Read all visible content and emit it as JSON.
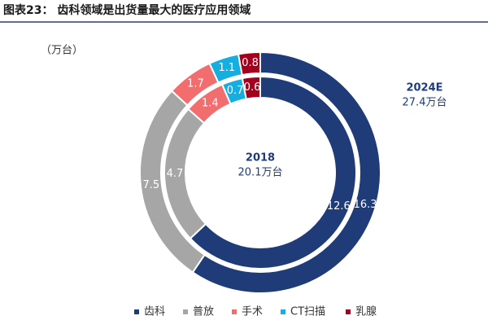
{
  "chart_data": {
    "type": "donut",
    "title": "图表23：  齿科领域是出货量最大的医疗应用领域",
    "unit": "（万台）",
    "categories": [
      "齿科",
      "普放",
      "手术",
      "CT扫描",
      "乳腺"
    ],
    "colors": [
      "#1f3b78",
      "#a6a6a6",
      "#f26d6d",
      "#16aee0",
      "#a3001e"
    ],
    "series": [
      {
        "name": "2018",
        "total_label": "20.1万台",
        "values": [
          12.6,
          4.7,
          1.4,
          0.7,
          0.6
        ]
      },
      {
        "name": "2024E",
        "total_label": "27.4万台",
        "values": [
          16.3,
          7.5,
          1.7,
          1.1,
          0.8
        ]
      }
    ],
    "legend": "bottom"
  }
}
